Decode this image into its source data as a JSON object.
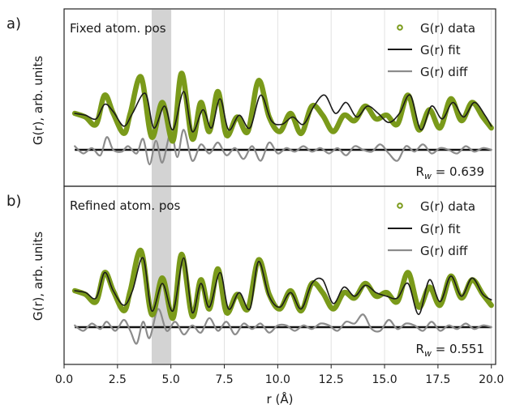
{
  "chart_data": [
    {
      "type": "line",
      "panel_label": "a)",
      "annotation": "Fixed atom. pos",
      "ylabel": "G(r), arb. units",
      "rw_label": "R",
      "rw_sub": "w",
      "rw_value": " = 0.639",
      "xlim": [
        0,
        20.2
      ],
      "ylim": [
        -1.6,
        2.3
      ],
      "baseline": 0,
      "highlight_band": [
        4.1,
        5.0
      ],
      "grid": "vertical",
      "legend_position": "top-right",
      "legend": [
        "G(r) data",
        "G(r) fit",
        "G(r) diff"
      ],
      "series": [
        {
          "name": "G(r) data",
          "x": [
            0.5,
            1.0,
            1.5,
            1.9,
            2.3,
            2.8,
            3.1,
            3.6,
            4.1,
            4.6,
            5.1,
            5.5,
            6.0,
            6.4,
            6.8,
            7.2,
            7.6,
            8.1,
            8.6,
            9.1,
            9.6,
            10.1,
            10.6,
            11.1,
            11.6,
            12.1,
            12.6,
            13.1,
            13.6,
            14.1,
            14.6,
            15.1,
            15.6,
            16.1,
            16.6,
            17.1,
            17.6,
            18.1,
            18.6,
            19.1,
            19.6,
            20.0
          ],
          "values": [
            1.0,
            0.9,
            0.7,
            1.5,
            1.0,
            0.45,
            1.0,
            2.0,
            0.35,
            1.3,
            0.25,
            2.1,
            0.3,
            1.3,
            0.5,
            1.6,
            0.4,
            0.9,
            0.5,
            1.9,
            0.9,
            0.5,
            1.0,
            0.45,
            1.2,
            0.95,
            0.5,
            0.95,
            0.8,
            1.2,
            0.85,
            0.95,
            0.7,
            1.5,
            0.55,
            1.1,
            0.6,
            1.4,
            0.8,
            1.3,
            0.9,
            0.6
          ]
        },
        {
          "name": "G(r) fit",
          "x": [
            0.5,
            1.0,
            1.5,
            1.9,
            2.3,
            2.8,
            3.2,
            3.8,
            4.2,
            4.7,
            5.1,
            5.6,
            6.0,
            6.5,
            6.9,
            7.3,
            7.7,
            8.2,
            8.7,
            9.2,
            9.7,
            10.2,
            10.7,
            11.2,
            11.7,
            12.2,
            12.7,
            13.2,
            13.7,
            14.2,
            14.7,
            15.2,
            15.7,
            16.2,
            16.7,
            17.2,
            17.7,
            18.2,
            18.7,
            19.2,
            19.7,
            20.0
          ],
          "values": [
            1.0,
            0.95,
            0.85,
            1.25,
            1.05,
            0.65,
            1.0,
            1.55,
            0.6,
            1.2,
            0.55,
            1.6,
            0.5,
            1.1,
            0.6,
            1.4,
            0.55,
            0.95,
            0.6,
            1.5,
            0.8,
            0.7,
            0.9,
            0.7,
            1.2,
            1.5,
            1.0,
            1.3,
            0.9,
            1.2,
            1.0,
            0.75,
            1.0,
            1.5,
            0.55,
            1.2,
            0.85,
            1.3,
            0.9,
            1.3,
            0.95,
            0.65
          ]
        },
        {
          "name": "G(r) diff",
          "x": [
            0.5,
            0.9,
            1.3,
            1.7,
            2.0,
            2.3,
            2.7,
            3.0,
            3.4,
            3.7,
            4.0,
            4.3,
            4.6,
            5.0,
            5.3,
            5.6,
            6.0,
            6.4,
            6.8,
            7.2,
            7.6,
            8.0,
            8.4,
            8.8,
            9.2,
            9.6,
            10.0,
            10.4,
            10.8,
            11.2,
            11.6,
            12.0,
            12.4,
            12.8,
            13.2,
            13.6,
            14.0,
            14.4,
            14.8,
            15.2,
            15.6,
            16.0,
            16.4,
            16.8,
            17.2,
            17.6,
            18.0,
            18.4,
            18.8,
            19.2,
            19.6,
            20.0
          ],
          "values": [
            0.1,
            -0.1,
            0.05,
            -0.15,
            0.35,
            0.0,
            -0.05,
            0.1,
            -0.1,
            0.3,
            -0.4,
            0.25,
            -0.35,
            0.5,
            -0.2,
            0.55,
            -0.3,
            0.15,
            -0.1,
            0.2,
            -0.15,
            0.05,
            -0.25,
            0.1,
            -0.3,
            0.2,
            -0.1,
            0.05,
            -0.05,
            0.1,
            -0.05,
            0.05,
            -0.1,
            0.05,
            -0.15,
            0.1,
            0.0,
            -0.05,
            0.15,
            -0.1,
            -0.3,
            0.1,
            -0.05,
            0.15,
            -0.1,
            0.05,
            0.0,
            -0.1,
            0.1,
            -0.05,
            0.05,
            0.0
          ]
        }
      ]
    },
    {
      "type": "line",
      "panel_label": "b)",
      "annotation": "Refined atom. pos",
      "ylabel": "G(r), arb. units",
      "rw_label": "R",
      "rw_sub": "w",
      "rw_value": " = 0.551",
      "xlim": [
        0,
        20.2
      ],
      "ylim": [
        -1.6,
        2.3
      ],
      "baseline": 0,
      "highlight_band": [
        4.1,
        5.0
      ],
      "grid": "vertical",
      "legend_position": "top-right",
      "legend": [
        "G(r) data",
        "G(r) fit",
        "G(r) diff"
      ],
      "xlabel": "r (Å)",
      "xticks": [
        "0.0",
        "2.5",
        "5.0",
        "7.5",
        "10.0",
        "12.5",
        "15.0",
        "17.5",
        "20.0"
      ],
      "series": [
        {
          "name": "G(r) data",
          "x": [
            0.5,
            1.0,
            1.5,
            1.9,
            2.3,
            2.8,
            3.1,
            3.6,
            4.1,
            4.6,
            5.1,
            5.5,
            6.0,
            6.4,
            6.8,
            7.2,
            7.6,
            8.1,
            8.6,
            9.1,
            9.6,
            10.1,
            10.6,
            11.1,
            11.6,
            12.1,
            12.6,
            13.1,
            13.6,
            14.1,
            14.6,
            15.1,
            15.6,
            16.1,
            16.6,
            17.1,
            17.6,
            18.1,
            18.6,
            19.1,
            19.6,
            20.0
          ],
          "values": [
            1.0,
            0.9,
            0.7,
            1.5,
            1.0,
            0.45,
            1.0,
            2.1,
            0.35,
            1.35,
            0.25,
            2.0,
            0.3,
            1.3,
            0.5,
            1.6,
            0.4,
            0.9,
            0.5,
            1.85,
            0.9,
            0.5,
            1.0,
            0.45,
            1.2,
            0.95,
            0.5,
            0.95,
            0.8,
            1.2,
            0.85,
            0.95,
            0.7,
            1.5,
            0.55,
            1.1,
            0.6,
            1.4,
            0.8,
            1.3,
            0.9,
            0.6
          ]
        },
        {
          "name": "G(r) fit",
          "x": [
            0.5,
            1.0,
            1.5,
            1.9,
            2.3,
            2.8,
            3.2,
            3.7,
            4.1,
            4.6,
            5.1,
            5.6,
            6.0,
            6.4,
            6.8,
            7.3,
            7.7,
            8.2,
            8.7,
            9.1,
            9.6,
            10.1,
            10.6,
            11.1,
            11.6,
            12.1,
            12.6,
            13.1,
            13.6,
            14.1,
            14.6,
            15.1,
            15.6,
            16.1,
            16.6,
            17.1,
            17.6,
            18.1,
            18.6,
            19.1,
            19.6,
            20.0
          ],
          "values": [
            1.0,
            0.95,
            0.8,
            1.5,
            1.0,
            0.6,
            1.0,
            1.9,
            0.45,
            1.2,
            0.45,
            1.9,
            0.4,
            1.2,
            0.55,
            1.5,
            0.5,
            0.95,
            0.5,
            1.8,
            0.85,
            0.55,
            0.95,
            0.5,
            1.2,
            1.3,
            0.65,
            1.1,
            0.85,
            1.15,
            0.95,
            0.85,
            0.8,
            1.2,
            0.35,
            1.3,
            0.7,
            1.4,
            0.85,
            1.35,
            0.9,
            0.75
          ]
        },
        {
          "name": "G(r) diff",
          "x": [
            0.5,
            0.9,
            1.3,
            1.7,
            2.0,
            2.4,
            2.8,
            3.1,
            3.4,
            3.7,
            4.0,
            4.4,
            4.8,
            5.2,
            5.6,
            6.0,
            6.4,
            6.8,
            7.2,
            7.6,
            8.0,
            8.4,
            8.8,
            9.2,
            9.6,
            10.0,
            10.4,
            10.8,
            11.2,
            11.6,
            12.0,
            12.4,
            12.8,
            13.2,
            13.6,
            14.0,
            14.4,
            14.8,
            15.2,
            15.6,
            16.0,
            16.4,
            16.8,
            17.2,
            17.6,
            18.0,
            18.4,
            18.8,
            19.2,
            19.6,
            20.0
          ],
          "values": [
            0.05,
            -0.1,
            0.1,
            -0.05,
            0.15,
            -0.1,
            0.2,
            -0.1,
            -0.45,
            0.15,
            -0.3,
            0.5,
            -0.1,
            0.15,
            -0.2,
            0.05,
            -0.15,
            0.25,
            -0.1,
            0.15,
            -0.2,
            0.1,
            -0.05,
            0.1,
            -0.15,
            0.05,
            0.05,
            -0.1,
            0.05,
            -0.05,
            0.1,
            0.05,
            -0.1,
            0.15,
            0.1,
            0.35,
            -0.05,
            -0.1,
            0.2,
            -0.05,
            0.1,
            0.05,
            -0.1,
            0.15,
            -0.1,
            0.05,
            -0.05,
            0.1,
            -0.05,
            0.05,
            0.0
          ]
        }
      ]
    }
  ],
  "colors": {
    "data": "#7a9a1a",
    "fit": "#1a1a1a",
    "diff": "#8c8c8c",
    "baseline": "#111111",
    "band": "#c8c8c8",
    "grid": "#e2e2e2"
  }
}
